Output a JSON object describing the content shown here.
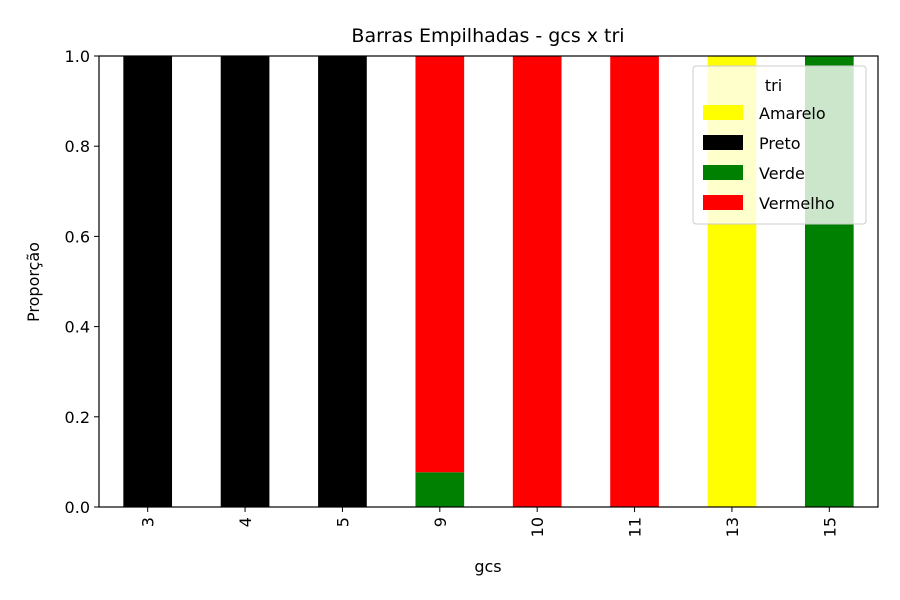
{
  "chart_data": {
    "type": "bar",
    "stacked": true,
    "title": "Barras Empilhadas - gcs x tri",
    "xlabel": "gcs",
    "ylabel": "Proporção",
    "categories": [
      "3",
      "4",
      "5",
      "9",
      "10",
      "11",
      "13",
      "15"
    ],
    "ylim": [
      0,
      1.0
    ],
    "yticks": [
      "0.0",
      "0.2",
      "0.4",
      "0.6",
      "0.8",
      "1.0"
    ],
    "grid": false,
    "legend": {
      "title": "tri",
      "placement": "top-right"
    },
    "series": [
      {
        "name": "Amarelo",
        "color": "#ffff00",
        "values": [
          0,
          0,
          0,
          0,
          0,
          0,
          1.0,
          0
        ]
      },
      {
        "name": "Preto",
        "color": "#000000",
        "values": [
          1.0,
          1.0,
          1.0,
          0,
          0,
          0,
          0,
          0
        ]
      },
      {
        "name": "Verde",
        "color": "#008000",
        "values": [
          0,
          0,
          0,
          0.077,
          0,
          0,
          0,
          1.0
        ]
      },
      {
        "name": "Vermelho",
        "color": "#ff0000",
        "values": [
          0,
          0,
          0,
          0.923,
          1.0,
          1.0,
          0,
          0
        ]
      }
    ]
  }
}
